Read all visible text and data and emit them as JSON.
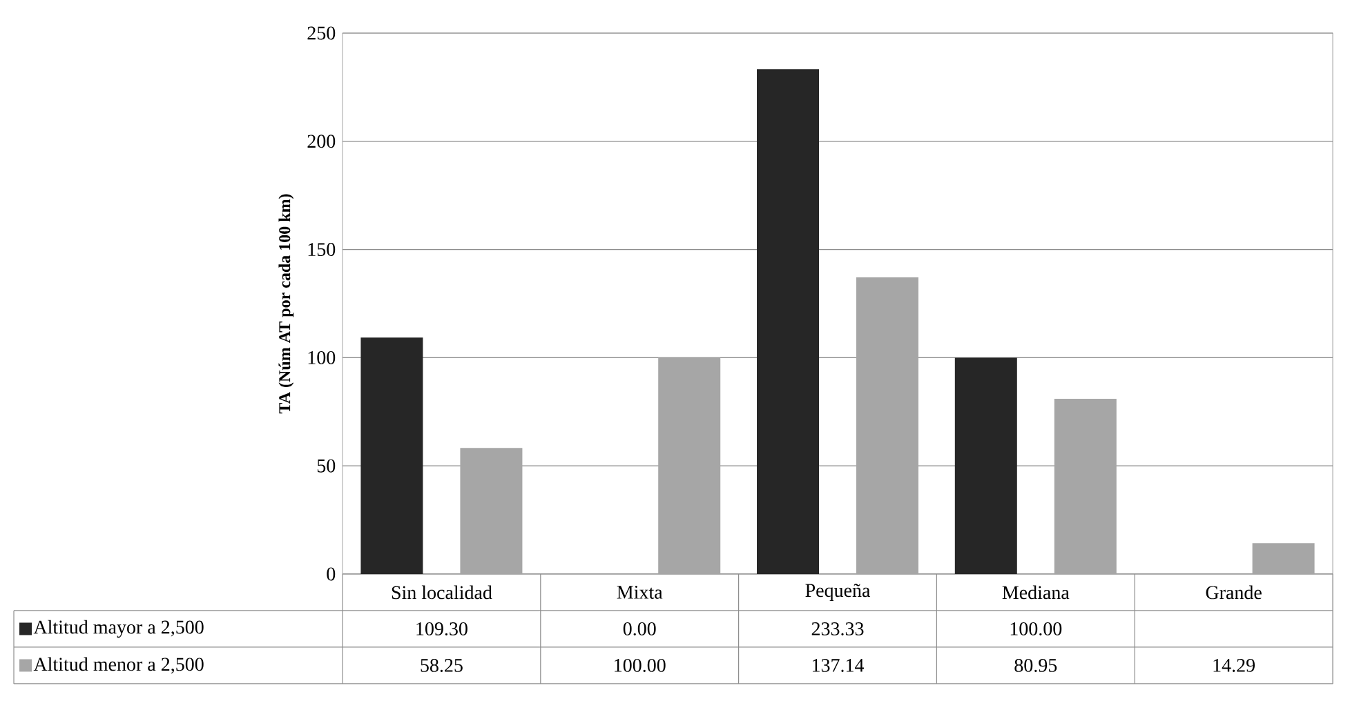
{
  "chart_data": {
    "type": "bar",
    "ylabel": "TA (Núm AT por cada 100 km)",
    "categories": [
      "Sin localidad",
      "Mixta",
      "Pequeña",
      "Mediana",
      "Grande"
    ],
    "series": [
      {
        "name": "Altitud mayor a 2,500",
        "color": "#262626",
        "values": [
          109.3,
          0.0,
          233.33,
          100.0,
          null
        ],
        "value_labels": [
          "109.30",
          "0.00",
          "233.33",
          "100.00",
          null
        ]
      },
      {
        "name": "Altitud menor a 2,500",
        "color": "#a6a6a6",
        "values": [
          58.25,
          100.0,
          137.14,
          80.95,
          14.29
        ],
        "value_labels": [
          "58.25",
          "100.00",
          "137.14",
          "80.95",
          "14.29"
        ]
      }
    ],
    "ylim": [
      0,
      250
    ],
    "yticks": [
      0,
      50,
      100,
      150,
      200,
      250
    ],
    "grid": true,
    "legend": "bottom"
  }
}
